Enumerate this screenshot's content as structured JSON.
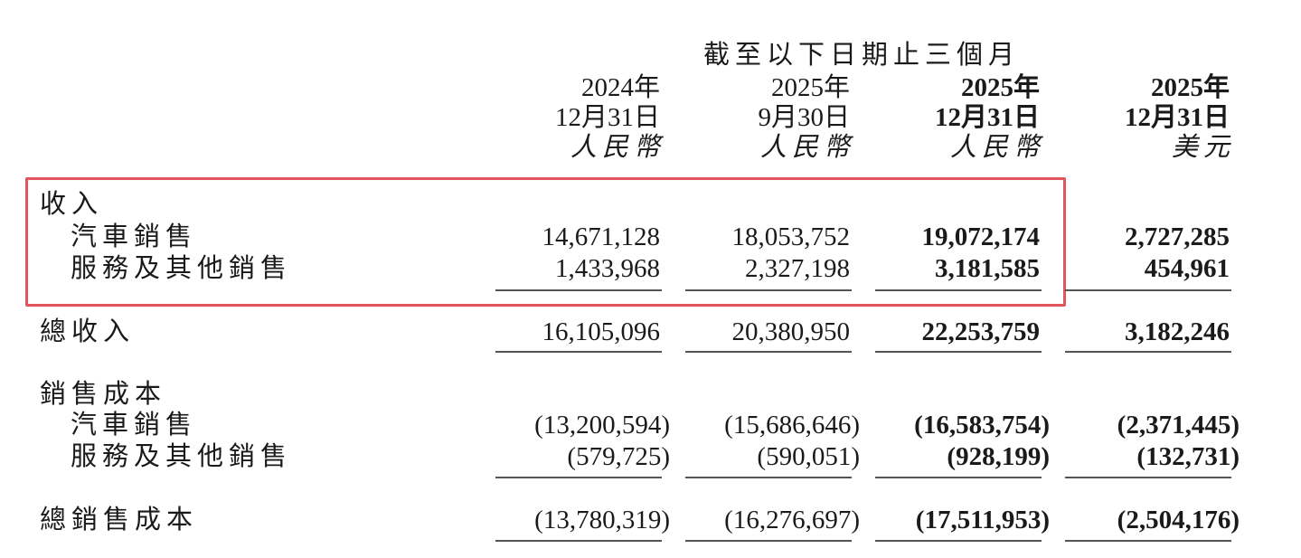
{
  "header": {
    "period": "截至以下日期止三個月",
    "columns": [
      {
        "year": "2024年",
        "date": "12月31日",
        "currency": "人民幣",
        "bold": false
      },
      {
        "year": "2025年",
        "date": "9月30日",
        "currency": "人民幣",
        "bold": false
      },
      {
        "year": "2025年",
        "date": "12月31日",
        "currency": "人民幣",
        "bold": true
      },
      {
        "year": "2025年",
        "date": "12月31日",
        "currency": "美元",
        "bold": true
      }
    ]
  },
  "rows": [
    {
      "label": "收入",
      "values": []
    },
    {
      "label": "汽車銷售",
      "values": [
        "14,671,128",
        "18,053,752",
        "19,072,174",
        "2,727,285"
      ]
    },
    {
      "label": "服務及其他銷售",
      "values": [
        "1,433,968",
        "2,327,198",
        "3,181,585",
        "454,961"
      ]
    },
    {
      "label": "總收入",
      "values": [
        "16,105,096",
        "20,380,950",
        "22,253,759",
        "3,182,246"
      ]
    },
    {
      "label": "銷售成本",
      "values": []
    },
    {
      "label": "汽車銷售",
      "values": [
        "(13,200,594)",
        "(15,686,646)",
        "(16,583,754)",
        "(2,371,445)"
      ]
    },
    {
      "label": "服務及其他銷售",
      "values": [
        "(579,725)",
        "(590,051)",
        "(928,199)",
        "(132,731)"
      ]
    },
    {
      "label": "總銷售成本",
      "values": [
        "(13,780,319)",
        "(16,276,697)",
        "(17,511,953)",
        "(2,504,176)"
      ]
    }
  ],
  "highlight_color": "#e0545c"
}
